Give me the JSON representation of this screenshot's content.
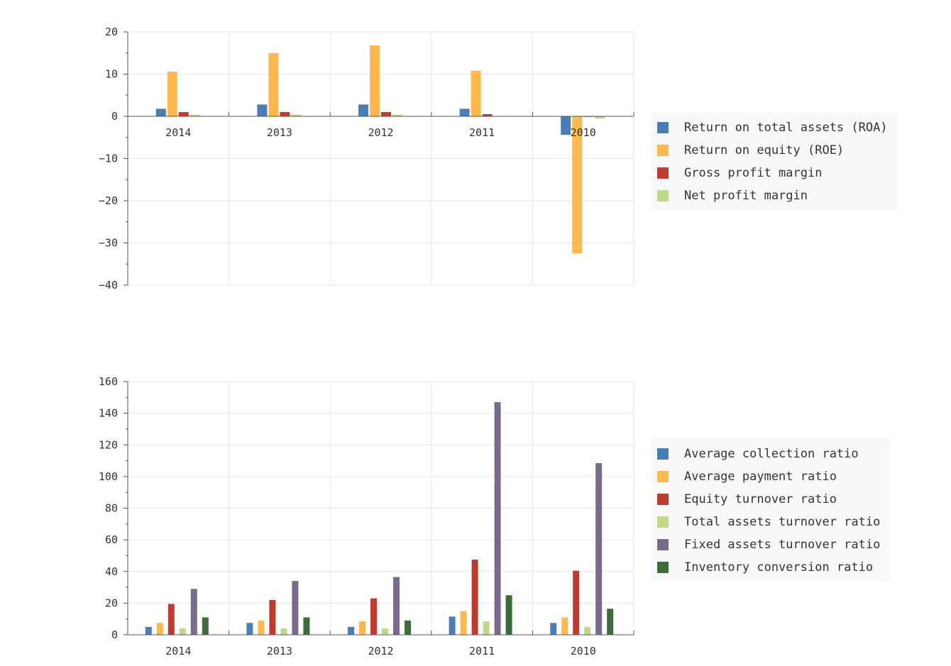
{
  "chart_data": [
    {
      "type": "bar",
      "categories": [
        "2014",
        "2013",
        "2012",
        "2011",
        "2010"
      ],
      "ylim": [
        -40,
        20
      ],
      "yticks": [
        20,
        10,
        0,
        -10,
        -20,
        -30,
        -40
      ],
      "grid": true,
      "legend_position": "right",
      "series": [
        {
          "name": "Return on total assets (ROA)",
          "color": "#4a7fb5",
          "values": [
            1.8,
            2.8,
            2.8,
            1.8,
            -4.4
          ]
        },
        {
          "name": "Return on equity (ROE)",
          "color": "#fdb94e",
          "values": [
            10.6,
            15.0,
            16.8,
            10.8,
            -32.5
          ]
        },
        {
          "name": "Gross profit margin",
          "color": "#c2392e",
          "values": [
            1.0,
            1.0,
            1.0,
            0.5,
            0.0
          ]
        },
        {
          "name": "Net profit margin",
          "color": "#bfd88a",
          "values": [
            0.4,
            0.4,
            0.4,
            0.1,
            -0.5
          ]
        }
      ]
    },
    {
      "type": "bar",
      "categories": [
        "2014",
        "2013",
        "2012",
        "2011",
        "2010"
      ],
      "ylim": [
        0,
        160
      ],
      "yticks": [
        160,
        140,
        120,
        100,
        80,
        60,
        40,
        20,
        0
      ],
      "grid": true,
      "legend_position": "right",
      "series": [
        {
          "name": "Average collection ratio",
          "color": "#4a7fb5",
          "values": [
            5,
            7.5,
            5,
            11.5,
            7.5
          ]
        },
        {
          "name": "Average payment ratio",
          "color": "#fdb94e",
          "values": [
            7.5,
            9,
            8.5,
            15,
            11
          ]
        },
        {
          "name": "Equity turnover ratio",
          "color": "#c2392e",
          "values": [
            19.5,
            22,
            23,
            47.5,
            40.5
          ]
        },
        {
          "name": "Total assets turnover ratio",
          "color": "#bfd88a",
          "values": [
            4,
            4,
            4,
            8.5,
            5
          ]
        },
        {
          "name": "Fixed assets turnover ratio",
          "color": "#7a6a8e",
          "values": [
            29,
            34,
            36.5,
            147,
            108.5
          ]
        },
        {
          "name": "Inventory conversion ratio",
          "color": "#3d6b3a",
          "values": [
            11,
            11,
            9,
            25,
            16.5
          ]
        }
      ]
    }
  ]
}
